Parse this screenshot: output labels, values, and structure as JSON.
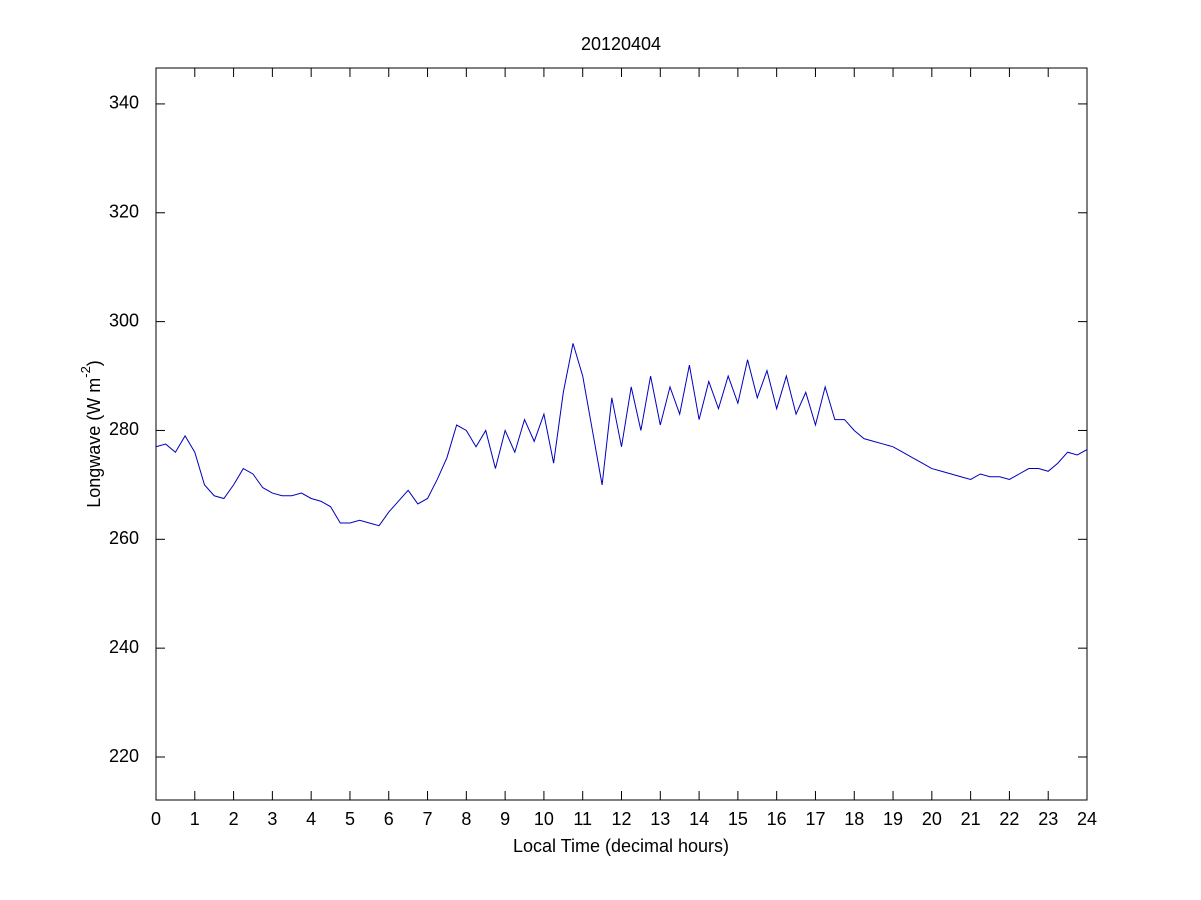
{
  "chart_data": {
    "type": "line",
    "title": "20120404",
    "xlabel": "Local Time (decimal hours)",
    "ylabel": [
      "Longwave (W m",
      "-2",
      ")"
    ],
    "x": [
      0,
      0.25,
      0.5,
      0.75,
      1,
      1.25,
      1.5,
      1.75,
      2,
      2.25,
      2.5,
      2.75,
      3,
      3.25,
      3.5,
      3.75,
      4,
      4.25,
      4.5,
      4.75,
      5,
      5.25,
      5.5,
      5.75,
      6,
      6.25,
      6.5,
      6.75,
      7,
      7.25,
      7.5,
      7.75,
      8,
      8.25,
      8.5,
      8.75,
      9,
      9.25,
      9.5,
      9.75,
      10,
      10.25,
      10.5,
      10.75,
      11,
      11.25,
      11.5,
      11.75,
      12,
      12.25,
      12.5,
      12.75,
      13,
      13.25,
      13.5,
      13.75,
      14,
      14.25,
      14.5,
      14.75,
      15,
      15.25,
      15.5,
      15.75,
      16,
      16.25,
      16.5,
      16.75,
      17,
      17.25,
      17.5,
      17.75,
      18,
      18.25,
      18.5,
      18.75,
      19,
      19.25,
      19.5,
      19.75,
      20,
      20.25,
      20.5,
      20.75,
      21,
      21.25,
      21.5,
      21.75,
      22,
      22.25,
      22.5,
      22.75,
      23,
      23.25,
      23.5,
      23.75,
      24
    ],
    "series": [
      {
        "name": "Longwave",
        "color": "#0000c0",
        "values": [
          277,
          277.5,
          276,
          279,
          276,
          270,
          268,
          267.5,
          270,
          273,
          272,
          269.5,
          268.5,
          268,
          268,
          268.5,
          267.5,
          267,
          266,
          263,
          263,
          263.5,
          263,
          262.5,
          265,
          267,
          269,
          266.5,
          267.5,
          271,
          275,
          281,
          280,
          277,
          280,
          273,
          280,
          276,
          282,
          278,
          283,
          274,
          287,
          296,
          290,
          280,
          270,
          286,
          277,
          288,
          280,
          290,
          281,
          288,
          283,
          292,
          282,
          289,
          284,
          290,
          285,
          293,
          286,
          291,
          284,
          290,
          283,
          287,
          281,
          288,
          282,
          282,
          280,
          278.5,
          278,
          277.5,
          277,
          276,
          275,
          274,
          273,
          272.5,
          272,
          271.5,
          271,
          272,
          271.5,
          271.5,
          271,
          272,
          273,
          273,
          272.5,
          274,
          276,
          275.5,
          276.5
        ]
      }
    ],
    "xlim": [
      0,
      24
    ],
    "xticks": [
      0,
      1,
      2,
      3,
      4,
      5,
      6,
      7,
      8,
      9,
      10,
      11,
      12,
      13,
      14,
      15,
      16,
      17,
      18,
      19,
      20,
      21,
      22,
      23,
      24
    ],
    "ylim": [
      212.1,
      346.6
    ],
    "yticks": [
      220,
      240,
      260,
      280,
      300,
      320,
      340
    ],
    "grid": false
  }
}
